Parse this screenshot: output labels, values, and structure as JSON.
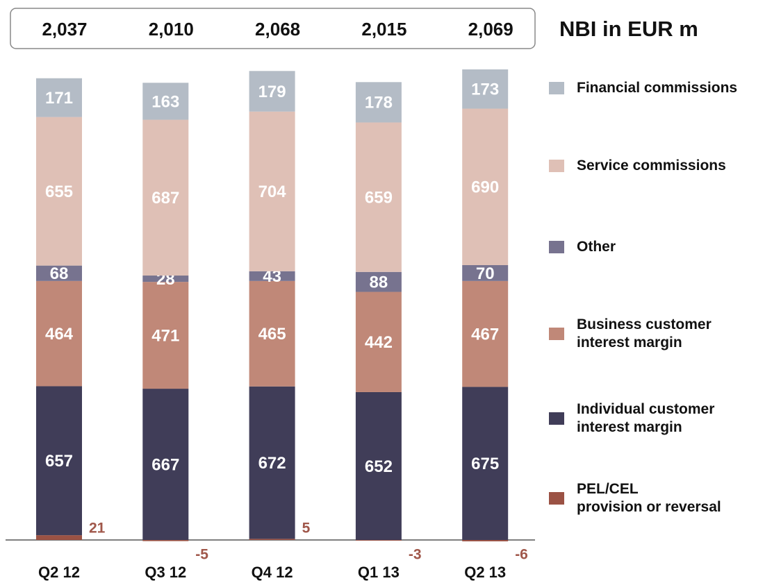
{
  "chart_data": {
    "type": "stacked-bar",
    "title": "NBI in EUR m",
    "categories": [
      "Q2 12",
      "Q3 12",
      "Q4 12",
      "Q1 13",
      "Q2 13"
    ],
    "totals": {
      "values": [
        2037,
        2010,
        2068,
        2015,
        2069
      ],
      "value_labels": [
        "2,037",
        "2,010",
        "2,068",
        "2,015",
        "2,069"
      ]
    },
    "series": [
      {
        "name": "PEL/CEL\nprovision or reversal",
        "color": "#9b5244",
        "values": [
          21,
          -5,
          5,
          -3,
          -6
        ]
      },
      {
        "name": "Individual customer\ninterest margin",
        "color": "#403d58",
        "values": [
          657,
          667,
          672,
          652,
          675
        ]
      },
      {
        "name": "Business customer\ninterest margin",
        "color": "#c08878",
        "values": [
          464,
          471,
          465,
          442,
          467
        ]
      },
      {
        "name": "Other",
        "color": "#77738f",
        "values": [
          68,
          28,
          43,
          88,
          70
        ]
      },
      {
        "name": "Service commissions",
        "color": "#dfc0b6",
        "values": [
          655,
          687,
          704,
          659,
          690
        ]
      },
      {
        "name": "Financial commissions",
        "color": "#b4bcc6",
        "values": [
          171,
          163,
          179,
          178,
          173
        ]
      }
    ]
  }
}
